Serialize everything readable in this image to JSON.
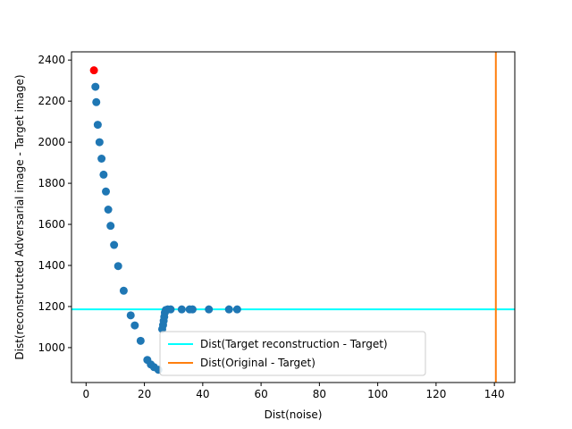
{
  "chart_data": {
    "type": "scatter",
    "title": "",
    "xlabel": "Dist(noise)",
    "ylabel": "Dist(reconstructed Adversarial image - Target image)",
    "xlim": [
      -5,
      147
    ],
    "ylim": [
      830,
      2440
    ],
    "xticks": [
      0,
      20,
      40,
      60,
      80,
      100,
      120,
      140
    ],
    "yticks": [
      1000,
      1200,
      1400,
      1600,
      1800,
      2000,
      2200,
      2400
    ],
    "grid": false,
    "legend_position": "lower-center",
    "points_color": "#1f77b4",
    "highlight_color": "#ff0000",
    "highlight_point": {
      "x": 2.7,
      "y": 2350
    },
    "points": [
      {
        "x": 3.2,
        "y": 2270
      },
      {
        "x": 3.5,
        "y": 2195
      },
      {
        "x": 4.0,
        "y": 2085
      },
      {
        "x": 4.6,
        "y": 2000
      },
      {
        "x": 5.3,
        "y": 1920
      },
      {
        "x": 6.0,
        "y": 1842
      },
      {
        "x": 6.8,
        "y": 1760
      },
      {
        "x": 7.6,
        "y": 1672
      },
      {
        "x": 8.4,
        "y": 1593
      },
      {
        "x": 9.6,
        "y": 1500
      },
      {
        "x": 11.0,
        "y": 1397
      },
      {
        "x": 12.9,
        "y": 1277
      },
      {
        "x": 15.3,
        "y": 1157
      },
      {
        "x": 16.7,
        "y": 1108
      },
      {
        "x": 18.7,
        "y": 1033
      },
      {
        "x": 21.0,
        "y": 940
      },
      {
        "x": 22.2,
        "y": 918
      },
      {
        "x": 23.3,
        "y": 905
      },
      {
        "x": 24.8,
        "y": 892
      },
      {
        "x": 26.1,
        "y": 1090
      },
      {
        "x": 26.4,
        "y": 1110
      },
      {
        "x": 26.6,
        "y": 1130
      },
      {
        "x": 26.8,
        "y": 1150
      },
      {
        "x": 27.0,
        "y": 1170
      },
      {
        "x": 27.3,
        "y": 1183
      },
      {
        "x": 28.0,
        "y": 1186
      },
      {
        "x": 29.0,
        "y": 1186
      },
      {
        "x": 32.8,
        "y": 1186
      },
      {
        "x": 35.5,
        "y": 1186
      },
      {
        "x": 36.5,
        "y": 1186
      },
      {
        "x": 42.1,
        "y": 1186
      },
      {
        "x": 49.0,
        "y": 1186
      },
      {
        "x": 51.8,
        "y": 1186
      }
    ],
    "series": [
      {
        "name": "Dist(Target reconstruction - Target)",
        "orientation": "horizontal",
        "value": 1186,
        "color": "#00ffff"
      },
      {
        "name": "Dist(Original - Target)",
        "orientation": "vertical",
        "value": 140.5,
        "color": "#ff7f0e"
      }
    ]
  }
}
